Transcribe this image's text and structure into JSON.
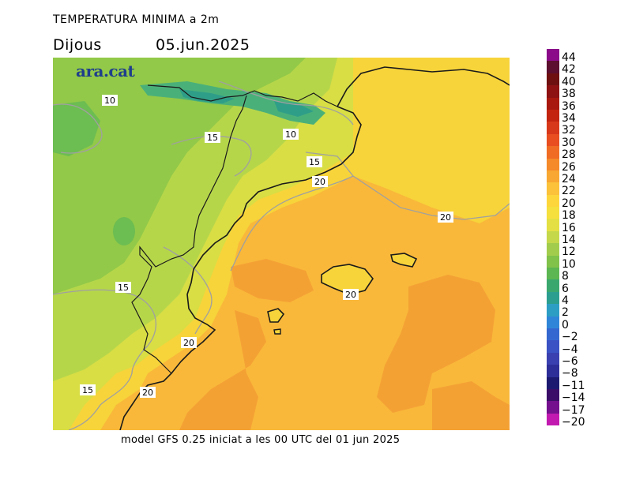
{
  "header": {
    "title": "TEMPERATURA MINIMA a 2m",
    "day": "Dijous",
    "date": "05.jun.2025"
  },
  "logo": {
    "text": "ara.cat"
  },
  "footer": {
    "text": "model GFS 0.25 iniciat a les 00 UTC del 01 jun 2025"
  },
  "map": {
    "contour_labels": [
      "10",
      "15",
      "10",
      "15",
      "20",
      "20",
      "20",
      "15",
      "20",
      "15",
      "20"
    ]
  },
  "legend": {
    "labels": [
      "44",
      "42",
      "40",
      "38",
      "36",
      "34",
      "32",
      "30",
      "28",
      "26",
      "24",
      "22",
      "20",
      "18",
      "16",
      "14",
      "12",
      "10",
      "8",
      "6",
      "4",
      "2",
      "0",
      "−2",
      "−4",
      "−6",
      "−8",
      "−11",
      "−14",
      "−17",
      "−20"
    ],
    "colors": [
      "#8a0a8a",
      "#5c0f2e",
      "#6e1010",
      "#8e1212",
      "#a8180e",
      "#c22410",
      "#d8381a",
      "#e84e20",
      "#f06c24",
      "#f58a2a",
      "#f8a732",
      "#fbc23a",
      "#fdd63c",
      "#f6e03e",
      "#e4e044",
      "#c4d84a",
      "#a2cd4c",
      "#80c24a",
      "#5cb652",
      "#3aa86e",
      "#2c9e90",
      "#2c9ec4",
      "#2f86d8",
      "#3468d0",
      "#3a52c4",
      "#3a40b0",
      "#2e2e98",
      "#1c1a70",
      "#3a0e68",
      "#74108e",
      "#c21ab0"
    ]
  }
}
